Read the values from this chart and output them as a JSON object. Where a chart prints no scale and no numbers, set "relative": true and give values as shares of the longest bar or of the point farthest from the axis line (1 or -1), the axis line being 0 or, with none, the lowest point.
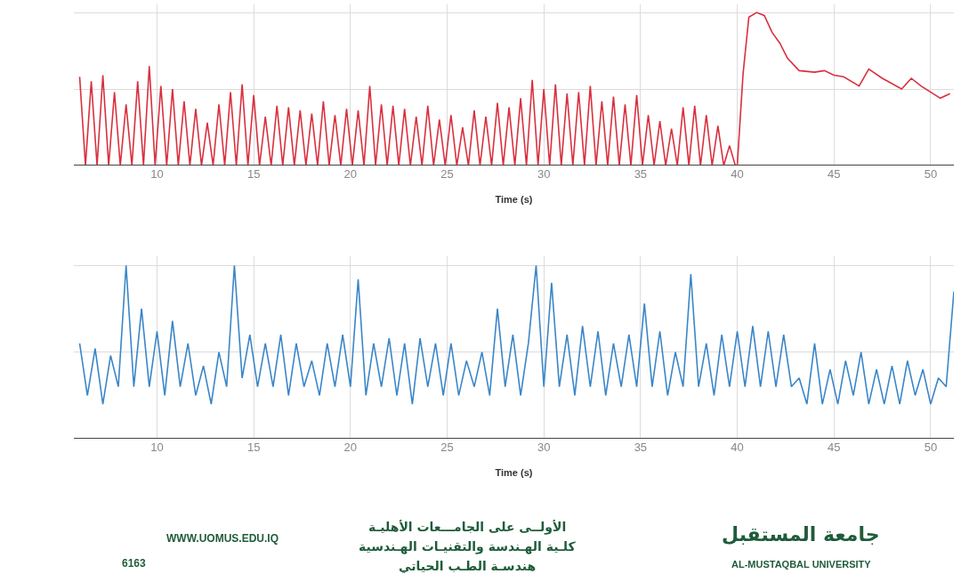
{
  "chart_data": [
    {
      "type": "line",
      "relative": true,
      "xlabel": "Time (s)",
      "xlim": [
        5.7,
        51.2
      ],
      "xticks": [
        10,
        15,
        20,
        25,
        30,
        35,
        40,
        45,
        50
      ],
      "grid": true,
      "marker": "none",
      "line_style": "solid",
      "series": [
        {
          "color": "#d9303e",
          "x": [
            6.0,
            6.3,
            6.6,
            6.9,
            7.2,
            7.5,
            7.8,
            8.1,
            8.4,
            8.7,
            9.0,
            9.3,
            9.6,
            9.9,
            10.2,
            10.5,
            10.8,
            11.1,
            11.4,
            11.7,
            12.0,
            12.3,
            12.6,
            12.9,
            13.2,
            13.5,
            13.8,
            14.1,
            14.4,
            14.7,
            15.0,
            15.3,
            15.6,
            15.9,
            16.2,
            16.5,
            16.8,
            17.1,
            17.4,
            17.7,
            18.0,
            18.3,
            18.6,
            18.9,
            19.2,
            19.5,
            19.8,
            20.1,
            20.4,
            20.7,
            21.0,
            21.3,
            21.6,
            21.9,
            22.2,
            22.5,
            22.8,
            23.1,
            23.4,
            23.7,
            24.0,
            24.3,
            24.6,
            24.9,
            25.2,
            25.5,
            25.8,
            26.1,
            26.4,
            26.7,
            27.0,
            27.3,
            27.6,
            27.9,
            28.2,
            28.5,
            28.8,
            29.1,
            29.4,
            29.7,
            30.0,
            30.3,
            30.6,
            30.9,
            31.2,
            31.5,
            31.8,
            32.1,
            32.4,
            32.7,
            33.0,
            33.3,
            33.6,
            33.9,
            34.2,
            34.5,
            34.8,
            35.1,
            35.4,
            35.7,
            36.0,
            36.3,
            36.6,
            36.9,
            37.2,
            37.5,
            37.8,
            38.1,
            38.4,
            38.7,
            39.0,
            39.3,
            39.6,
            39.9,
            40.0,
            40.3,
            40.6,
            41.0,
            41.4,
            41.8,
            42.2,
            42.6,
            43.2,
            44.0,
            44.5,
            45.0,
            45.5,
            46.3,
            46.8,
            47.5,
            48.5,
            49.0,
            49.5,
            50.5,
            51.0
          ],
          "values": [
            0.58,
            0,
            0.55,
            0,
            0.59,
            0,
            0.48,
            0,
            0.4,
            0,
            0.55,
            0,
            0.65,
            0,
            0.52,
            0,
            0.5,
            0,
            0.42,
            0,
            0.37,
            0,
            0.28,
            0,
            0.4,
            0,
            0.48,
            0,
            0.53,
            0,
            0.46,
            0,
            0.32,
            0,
            0.39,
            0,
            0.38,
            0,
            0.36,
            0,
            0.34,
            0,
            0.42,
            0,
            0.33,
            0,
            0.37,
            0,
            0.36,
            0,
            0.52,
            0,
            0.4,
            0,
            0.39,
            0,
            0.37,
            0,
            0.32,
            0,
            0.39,
            0,
            0.3,
            0,
            0.33,
            0,
            0.25,
            0,
            0.36,
            0,
            0.32,
            0,
            0.41,
            0,
            0.38,
            0,
            0.44,
            0,
            0.56,
            0,
            0.5,
            0,
            0.53,
            0,
            0.47,
            0,
            0.48,
            0,
            0.52,
            0,
            0.42,
            0,
            0.45,
            0,
            0.4,
            0,
            0.46,
            0,
            0.33,
            0,
            0.29,
            0,
            0.24,
            0,
            0.38,
            0,
            0.39,
            0,
            0.33,
            0,
            0.26,
            0,
            0.13,
            0,
            0,
            0.6,
            0.97,
            1.0,
            0.98,
            0.87,
            0.8,
            0.7,
            0.62,
            0.61,
            0.62,
            0.59,
            0.58,
            0.52,
            0.63,
            0.57,
            0.5,
            0.57,
            0.52,
            0.44,
            0.47
          ]
        }
      ]
    },
    {
      "type": "line",
      "relative": true,
      "xlabel": "Time (s)",
      "xlim": [
        5.7,
        51.2
      ],
      "xticks": [
        10,
        15,
        20,
        25,
        30,
        35,
        40,
        45,
        50
      ],
      "grid": true,
      "marker": "none",
      "line_style": "solid",
      "series": [
        {
          "color": "#3a86c8",
          "x": [
            6.0,
            6.4,
            6.8,
            7.2,
            7.6,
            8.0,
            8.4,
            8.8,
            9.2,
            9.6,
            10.0,
            10.4,
            10.8,
            11.2,
            11.6,
            12.0,
            12.4,
            12.8,
            13.2,
            13.6,
            14.0,
            14.4,
            14.8,
            15.2,
            15.6,
            16.0,
            16.4,
            16.8,
            17.2,
            17.6,
            18.0,
            18.4,
            18.8,
            19.2,
            19.6,
            20.0,
            20.4,
            20.8,
            21.2,
            21.6,
            22.0,
            22.4,
            22.8,
            23.2,
            23.6,
            24.0,
            24.4,
            24.8,
            25.2,
            25.6,
            26.0,
            26.4,
            26.8,
            27.2,
            27.6,
            28.0,
            28.4,
            28.8,
            29.2,
            29.6,
            30.0,
            30.4,
            30.8,
            31.2,
            31.6,
            32.0,
            32.4,
            32.8,
            33.2,
            33.6,
            34.0,
            34.4,
            34.8,
            35.2,
            35.6,
            36.0,
            36.4,
            36.8,
            37.2,
            37.6,
            38.0,
            38.4,
            38.8,
            39.2,
            39.6,
            40.0,
            40.4,
            40.8,
            41.2,
            41.6,
            42.0,
            42.4,
            42.8,
            43.2,
            43.6,
            44.0,
            44.4,
            44.8,
            45.2,
            45.6,
            46.0,
            46.4,
            46.8,
            47.2,
            47.6,
            48.0,
            48.4,
            48.8,
            49.2,
            49.6,
            50.0,
            50.4,
            50.8,
            51.2
          ],
          "values": [
            0.55,
            0.25,
            0.52,
            0.2,
            0.48,
            0.3,
            1.0,
            0.3,
            0.75,
            0.3,
            0.62,
            0.25,
            0.68,
            0.3,
            0.55,
            0.25,
            0.42,
            0.2,
            0.5,
            0.3,
            1.0,
            0.35,
            0.6,
            0.3,
            0.55,
            0.3,
            0.6,
            0.25,
            0.55,
            0.3,
            0.45,
            0.25,
            0.55,
            0.3,
            0.6,
            0.3,
            0.92,
            0.25,
            0.55,
            0.3,
            0.58,
            0.25,
            0.55,
            0.2,
            0.58,
            0.3,
            0.55,
            0.25,
            0.55,
            0.25,
            0.45,
            0.3,
            0.5,
            0.25,
            0.75,
            0.3,
            0.6,
            0.25,
            0.55,
            1.0,
            0.3,
            0.9,
            0.3,
            0.6,
            0.25,
            0.65,
            0.3,
            0.62,
            0.25,
            0.55,
            0.3,
            0.6,
            0.3,
            0.78,
            0.3,
            0.62,
            0.25,
            0.5,
            0.3,
            0.95,
            0.3,
            0.55,
            0.25,
            0.6,
            0.3,
            0.62,
            0.3,
            0.65,
            0.3,
            0.62,
            0.3,
            0.6,
            0.3,
            0.35,
            0.2,
            0.55,
            0.2,
            0.4,
            0.2,
            0.45,
            0.25,
            0.5,
            0.2,
            0.4,
            0.2,
            0.42,
            0.2,
            0.45,
            0.25,
            0.4,
            0.2,
            0.35,
            0.3,
            0.85
          ]
        }
      ],
      "annotations": [
        "WWW.UOMUS.EDU.IQ",
        "6163",
        "الأولــى على الجامـــعات الأهليـة",
        "كلـية الهـندسة والتقنيـات الهـندسية",
        "هندسـة الطـب الحياتي",
        "جامعة المستقبل",
        "AL-MUSTAQBAL UNIVERSITY"
      ]
    }
  ]
}
